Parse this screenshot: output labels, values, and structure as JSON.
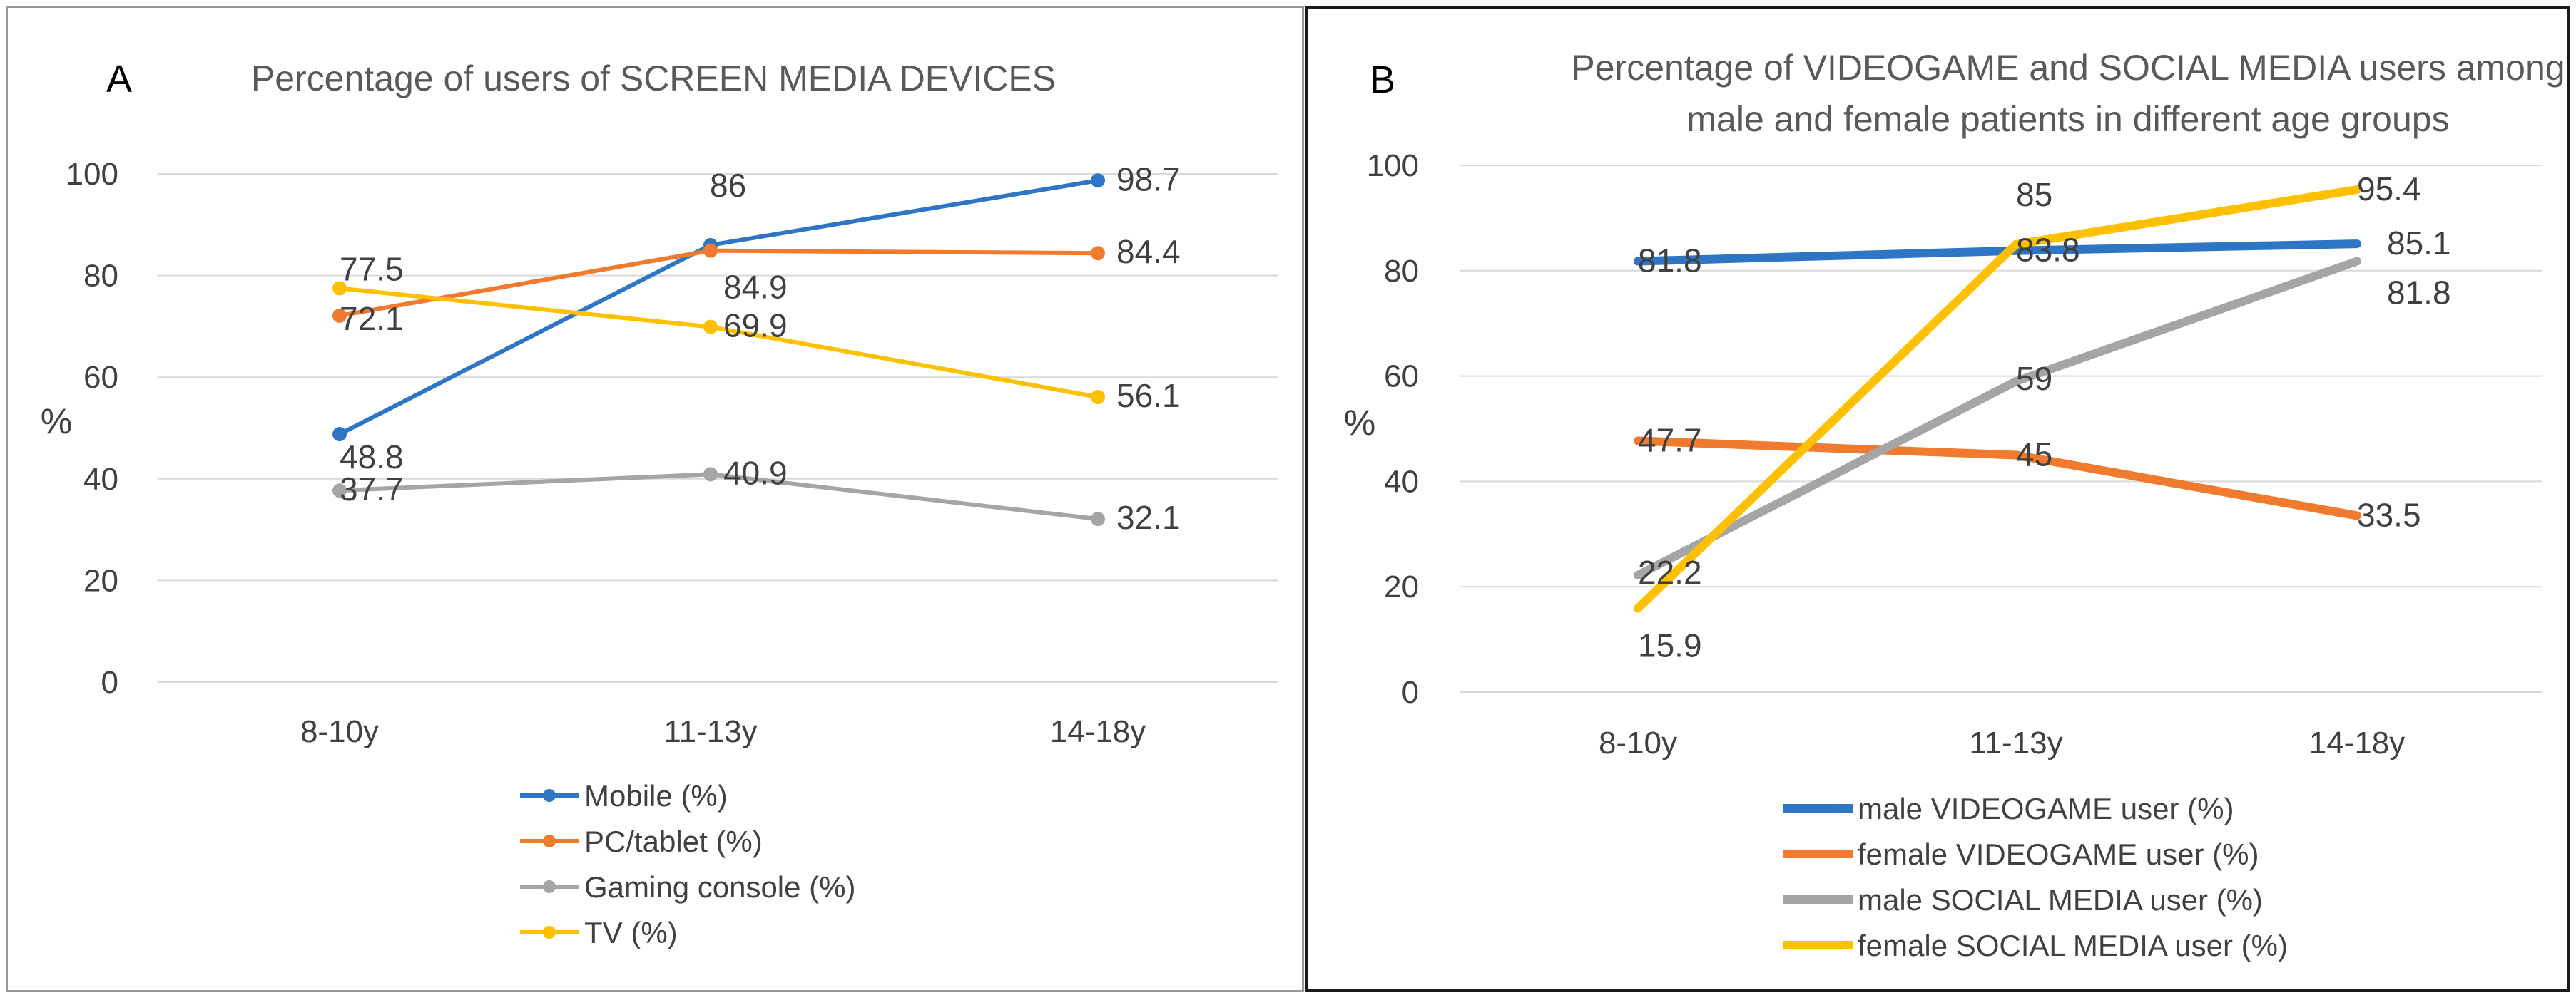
{
  "chart_data": [
    {
      "type": "line",
      "panel_label": "A",
      "title": "Percentage of users of SCREEN MEDIA DEVICES",
      "ylabel": "%",
      "xlabel": "",
      "ylim": [
        0,
        100
      ],
      "yticks": [
        0,
        20,
        40,
        60,
        80,
        100
      ],
      "categories": [
        "8-10y",
        "11-13y",
        "14-18y"
      ],
      "grid": true,
      "legend_position": "bottom",
      "series": [
        {
          "name": "Mobile (%)",
          "values": [
            48.8,
            86,
            98.7
          ],
          "labels": [
            "48.8",
            "86",
            "98.7"
          ],
          "color": "#2e75c6",
          "markers": true
        },
        {
          "name": "PC/tablet (%)",
          "values": [
            72.1,
            84.9,
            84.4
          ],
          "labels": [
            "72.1",
            "84.9",
            "84.4"
          ],
          "color": "#f07a2d",
          "markers": true
        },
        {
          "name": "Gaming console (%)",
          "values": [
            37.7,
            40.9,
            32.1
          ],
          "labels": [
            "37.7",
            "40.9",
            "32.1"
          ],
          "color": "#a5a5a5",
          "markers": true
        },
        {
          "name": "TV (%)",
          "values": [
            77.5,
            69.9,
            56.1
          ],
          "labels": [
            "77.5",
            "69.9",
            "56.1"
          ],
          "color": "#ffc000",
          "markers": true
        }
      ]
    },
    {
      "type": "line",
      "panel_label": "B",
      "title": [
        "Percentage of VIDEOGAME and SOCIAL MEDIA users among",
        "male and female patients in different age groups"
      ],
      "ylabel": "%",
      "xlabel": "",
      "ylim": [
        0,
        100
      ],
      "yticks": [
        0,
        20,
        40,
        60,
        80,
        100
      ],
      "categories": [
        "8-10y",
        "11-13y",
        "14-18y"
      ],
      "grid": true,
      "legend_position": "bottom",
      "series": [
        {
          "name": "male VIDEOGAME user (%)",
          "values": [
            81.8,
            83.8,
            85.1
          ],
          "labels": [
            "81.8",
            "83.8",
            "85.1"
          ],
          "color": "#2e75c6",
          "markers": false
        },
        {
          "name": "female VIDEOGAME user (%)",
          "values": [
            47.7,
            45,
            33.5
          ],
          "labels": [
            "47.7",
            "45",
            "33.5"
          ],
          "color": "#f07a2d",
          "markers": false
        },
        {
          "name": "male SOCIAL MEDIA user (%)",
          "values": [
            22.2,
            59,
            81.8
          ],
          "labels": [
            "22.2",
            "59",
            "81.8"
          ],
          "color": "#a5a5a5",
          "markers": false
        },
        {
          "name": "female SOCIAL MEDIA user (%)",
          "values": [
            15.9,
            85,
            95.4
          ],
          "labels": [
            "15.9",
            "85",
            "95.4"
          ],
          "color": "#ffc000",
          "markers": false
        }
      ]
    }
  ]
}
